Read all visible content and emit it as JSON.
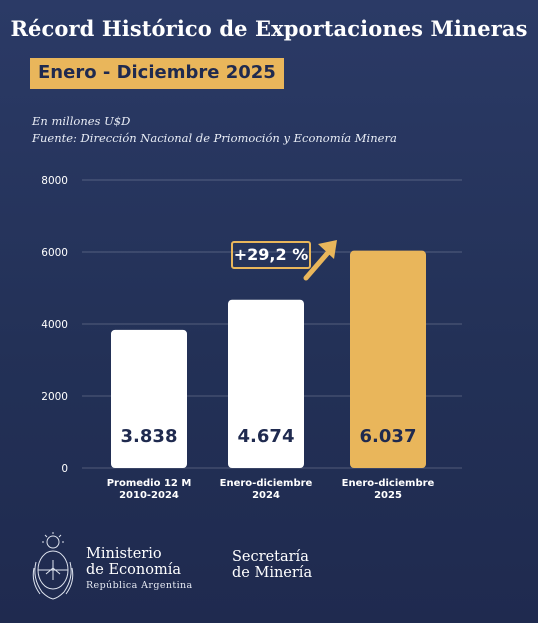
{
  "header": {
    "title": "Récord Histórico de Exportaciones Mineras",
    "period": "Enero - Diciembre 2025",
    "unit": "En millones U$D",
    "source": "Fuente: Dirección Nacional de Priomoción y Economía Minera"
  },
  "colors": {
    "background": "#233157",
    "accent": "#e9b65b",
    "bar_default": "#ffffff",
    "label_dark": "#1f2a4f"
  },
  "chart_data": {
    "type": "bar",
    "title": "",
    "xlabel": "",
    "ylabel": "",
    "ylim": [
      0,
      8000
    ],
    "yticks": [
      "0",
      "2000",
      "4000",
      "6000",
      "8000"
    ],
    "grid": true,
    "categories": [
      [
        "Promedio 12 M",
        "2010-2024"
      ],
      [
        "Enero-diciembre",
        "2024"
      ],
      [
        "Enero-diciembre",
        "2025"
      ]
    ],
    "values": [
      3838,
      4674,
      6037
    ],
    "value_labels": [
      "3.838",
      "4.674",
      "6.037"
    ],
    "highlight_index": 2,
    "annotation": "+29,2 %"
  },
  "footer": {
    "ministry_line1": "Ministerio",
    "ministry_line2": "de Economía",
    "ministry_line3": "República Argentina",
    "secretaria_line1": "Secretaría",
    "secretaria_line2": "de Minería",
    "logo_icon": "argentina-coat-of-arms-icon"
  }
}
